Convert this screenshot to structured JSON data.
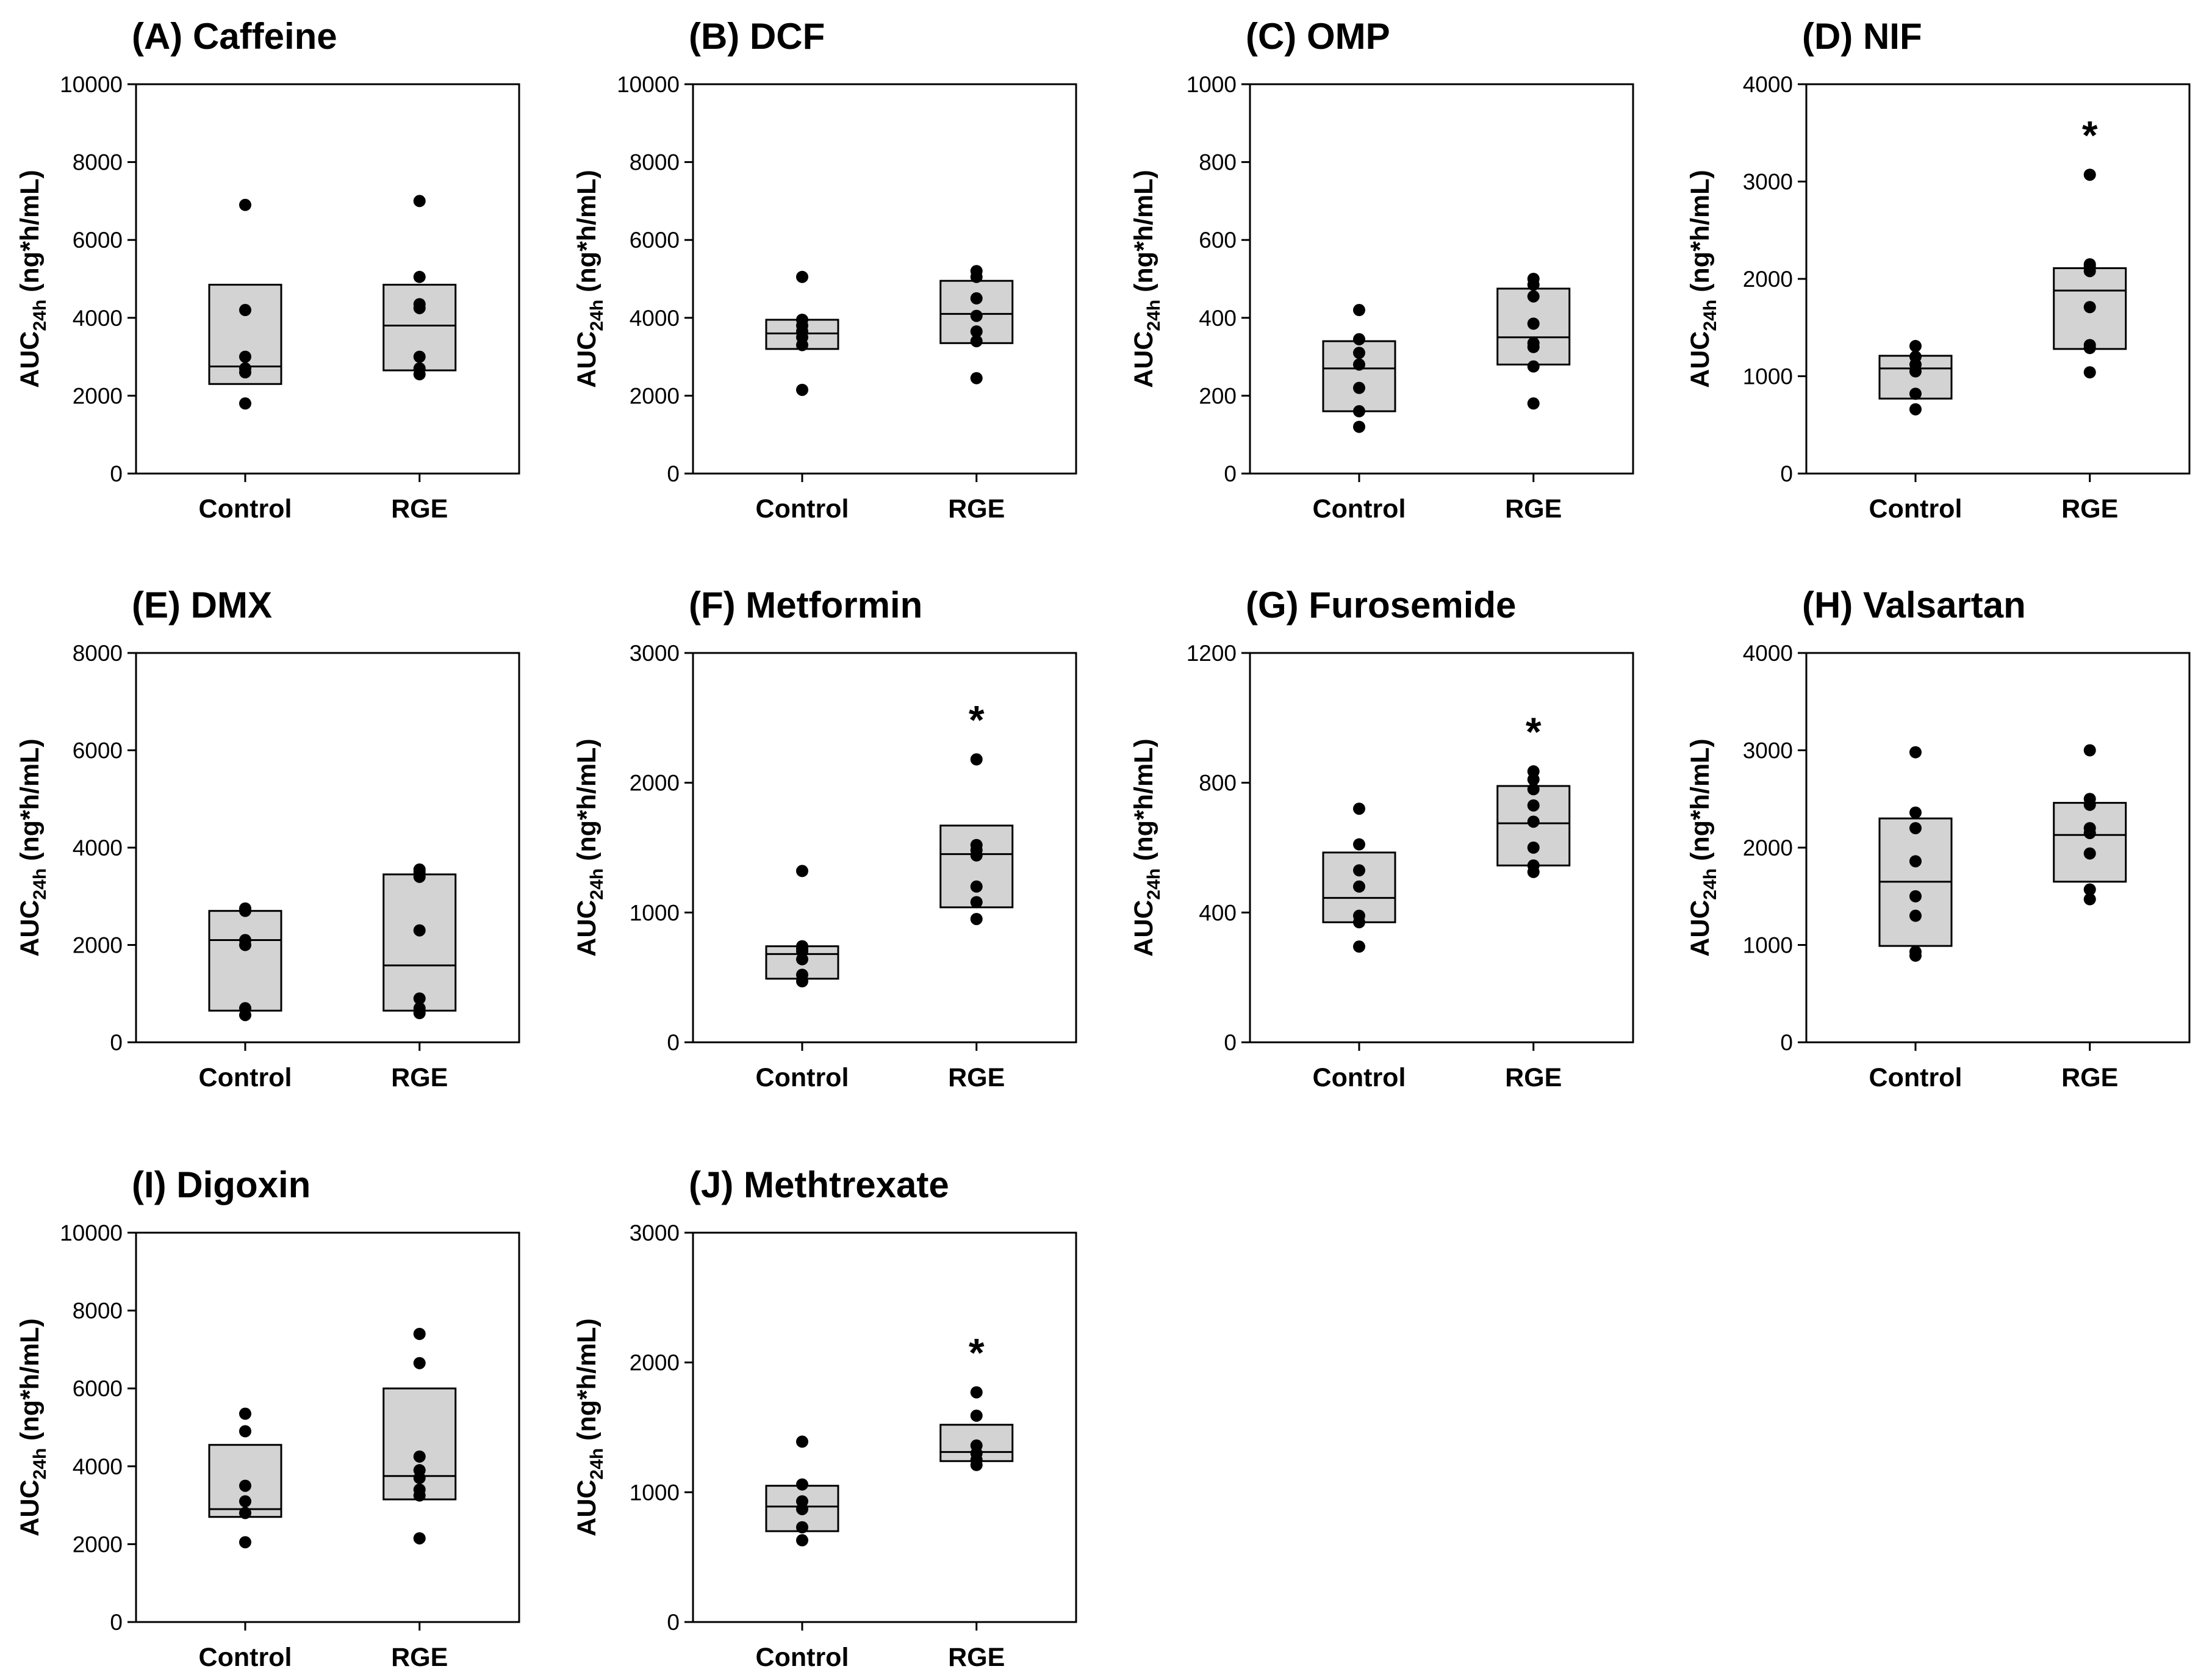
{
  "chart_data": [
    {
      "type": "box",
      "title": "(A) Caffeine",
      "ylabel_main": "AUC",
      "ylabel_sub": "24h",
      "ylabel_unit": " (ng*h/mL)",
      "ylim": [
        0,
        10000
      ],
      "yticks": [
        "0",
        "2000",
        "4000",
        "6000",
        "8000",
        "10000"
      ],
      "categories": [
        "Control",
        "RGE"
      ],
      "boxes": [
        {
          "category": "Control",
          "q1": 2300,
          "median": 2750,
          "q3": 4850,
          "points": [
            1800,
            2600,
            2700,
            3000,
            4200,
            6900
          ],
          "significant": false
        },
        {
          "category": "RGE",
          "q1": 2650,
          "median": 3800,
          "q3": 4850,
          "points": [
            2550,
            2700,
            3000,
            4250,
            4350,
            5050,
            7000
          ],
          "significant": false
        }
      ]
    },
    {
      "type": "box",
      "title": "(B) DCF",
      "ylabel_main": "AUC",
      "ylabel_sub": "24h",
      "ylabel_unit": " (ng*h/mL)",
      "ylim": [
        0,
        10000
      ],
      "yticks": [
        "0",
        "2000",
        "4000",
        "6000",
        "8000",
        "10000"
      ],
      "categories": [
        "Control",
        "RGE"
      ],
      "boxes": [
        {
          "category": "Control",
          "q1": 3200,
          "median": 3600,
          "q3": 3950,
          "points": [
            2150,
            3300,
            3500,
            3650,
            3800,
            3950,
            5050
          ],
          "significant": false
        },
        {
          "category": "RGE",
          "q1": 3350,
          "median": 4100,
          "q3": 4950,
          "points": [
            2450,
            3400,
            3650,
            4050,
            4500,
            5050,
            5200
          ],
          "significant": false
        }
      ]
    },
    {
      "type": "box",
      "title": "(C) OMP",
      "ylabel_main": "AUC",
      "ylabel_sub": "24h",
      "ylabel_unit": " (ng*h/mL)",
      "ylim": [
        0,
        1000
      ],
      "yticks": [
        "0",
        "200",
        "400",
        "600",
        "800",
        "1000"
      ],
      "categories": [
        "Control",
        "RGE"
      ],
      "boxes": [
        {
          "category": "Control",
          "q1": 160,
          "median": 270,
          "q3": 340,
          "points": [
            120,
            160,
            220,
            280,
            310,
            345,
            420
          ],
          "significant": false
        },
        {
          "category": "RGE",
          "q1": 280,
          "median": 350,
          "q3": 475,
          "points": [
            180,
            275,
            325,
            335,
            385,
            455,
            485,
            500
          ],
          "significant": false
        }
      ]
    },
    {
      "type": "box",
      "title": "(D) NIF",
      "ylabel_main": "AUC",
      "ylabel_sub": "24h",
      "ylabel_unit": " (ng*h/mL)",
      "ylim": [
        0,
        4000
      ],
      "yticks": [
        "0",
        "1000",
        "2000",
        "3000",
        "4000"
      ],
      "categories": [
        "Control",
        "RGE"
      ],
      "boxes": [
        {
          "category": "Control",
          "q1": 770,
          "median": 1080,
          "q3": 1210,
          "points": [
            660,
            820,
            1050,
            1120,
            1200,
            1310
          ],
          "significant": false
        },
        {
          "category": "RGE",
          "q1": 1280,
          "median": 1880,
          "q3": 2110,
          "points": [
            1040,
            1290,
            1320,
            1710,
            2080,
            2130,
            2150,
            3070
          ],
          "significant": true
        }
      ]
    },
    {
      "type": "box",
      "title": "(E) DMX",
      "ylabel_main": "AUC",
      "ylabel_sub": "24h",
      "ylabel_unit": " (ng*h/mL)",
      "ylim": [
        0,
        8000
      ],
      "yticks": [
        "0",
        "2000",
        "4000",
        "6000",
        "8000"
      ],
      "categories": [
        "Control",
        "RGE"
      ],
      "boxes": [
        {
          "category": "Control",
          "q1": 650,
          "median": 2100,
          "q3": 2700,
          "points": [
            560,
            700,
            2000,
            2100,
            2700,
            2750
          ],
          "significant": false
        },
        {
          "category": "RGE",
          "q1": 650,
          "median": 1580,
          "q3": 3450,
          "points": [
            600,
            700,
            900,
            2300,
            3400,
            3500,
            3550
          ],
          "significant": false
        }
      ]
    },
    {
      "type": "box",
      "title": "(F) Metformin",
      "ylabel_main": "AUC",
      "ylabel_sub": "24h",
      "ylabel_unit": " (ng*h/mL)",
      "ylim": [
        0,
        3000
      ],
      "yticks": [
        "0",
        "1000",
        "2000",
        "3000"
      ],
      "categories": [
        "Control",
        "RGE"
      ],
      "boxes": [
        {
          "category": "Control",
          "q1": 490,
          "median": 680,
          "q3": 740,
          "points": [
            470,
            520,
            640,
            700,
            720,
            740,
            1320
          ],
          "significant": false
        },
        {
          "category": "RGE",
          "q1": 1040,
          "median": 1450,
          "q3": 1670,
          "points": [
            950,
            1080,
            1200,
            1440,
            1480,
            1520,
            2180
          ],
          "significant": true
        }
      ]
    },
    {
      "type": "box",
      "title": "(G) Furosemide",
      "ylabel_main": "AUC",
      "ylabel_sub": "24h",
      "ylabel_unit": " (ng*h/mL)",
      "ylim": [
        0,
        1200
      ],
      "yticks": [
        "0",
        "400",
        "800",
        "1200"
      ],
      "categories": [
        "Control",
        "RGE"
      ],
      "boxes": [
        {
          "category": "Control",
          "q1": 370,
          "median": 445,
          "q3": 585,
          "points": [
            295,
            370,
            390,
            480,
            530,
            610,
            720
          ],
          "significant": false
        },
        {
          "category": "RGE",
          "q1": 545,
          "median": 675,
          "q3": 790,
          "points": [
            525,
            545,
            600,
            680,
            730,
            780,
            810,
            835
          ],
          "significant": true
        }
      ]
    },
    {
      "type": "box",
      "title": "(H) Valsartan",
      "ylabel_main": "AUC",
      "ylabel_sub": "24h",
      "ylabel_unit": " (ng*h/mL)",
      "ylim": [
        0,
        4000
      ],
      "yticks": [
        "0",
        "1000",
        "2000",
        "3000",
        "4000"
      ],
      "categories": [
        "Control",
        "RGE"
      ],
      "boxes": [
        {
          "category": "Control",
          "q1": 990,
          "median": 1650,
          "q3": 2300,
          "points": [
            890,
            930,
            1300,
            1500,
            1860,
            2200,
            2360,
            2980
          ],
          "significant": false
        },
        {
          "category": "RGE",
          "q1": 1650,
          "median": 2130,
          "q3": 2460,
          "points": [
            1470,
            1570,
            1940,
            2150,
            2200,
            2440,
            2500,
            3000
          ],
          "significant": false
        }
      ]
    },
    {
      "type": "box",
      "title": "(I) Digoxin",
      "ylabel_main": "AUC",
      "ylabel_sub": "24h",
      "ylabel_unit": " (ng*h/mL)",
      "ylim": [
        0,
        10000
      ],
      "yticks": [
        "0",
        "2000",
        "4000",
        "6000",
        "8000",
        "10000"
      ],
      "categories": [
        "Control",
        "RGE"
      ],
      "boxes": [
        {
          "category": "Control",
          "q1": 2700,
          "median": 2900,
          "q3": 4550,
          "points": [
            2050,
            2800,
            3100,
            3500,
            4900,
            5350
          ],
          "significant": false
        },
        {
          "category": "RGE",
          "q1": 3150,
          "median": 3750,
          "q3": 6000,
          "points": [
            2150,
            3250,
            3400,
            3700,
            3900,
            4250,
            6650,
            7400
          ],
          "significant": false
        }
      ]
    },
    {
      "type": "box",
      "title": "(J) Methtrexate",
      "ylabel_main": "AUC",
      "ylabel_sub": "24h",
      "ylabel_unit": " (ng*h/mL)",
      "ylim": [
        0,
        3000
      ],
      "yticks": [
        "0",
        "1000",
        "2000",
        "3000"
      ],
      "categories": [
        "Control",
        "RGE"
      ],
      "boxes": [
        {
          "category": "Control",
          "q1": 700,
          "median": 890,
          "q3": 1050,
          "points": [
            630,
            730,
            870,
            930,
            1060,
            1390
          ],
          "significant": false
        },
        {
          "category": "RGE",
          "q1": 1240,
          "median": 1310,
          "q3": 1520,
          "points": [
            1210,
            1250,
            1300,
            1360,
            1590,
            1770
          ],
          "significant": true
        }
      ]
    }
  ],
  "significance_marker": "*",
  "colors": {
    "box_fill": "#d3d3d3",
    "stroke": "#000000",
    "point": "#000000"
  }
}
